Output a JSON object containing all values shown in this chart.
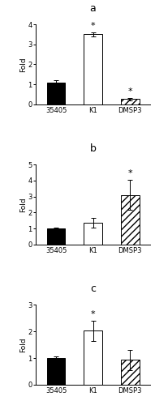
{
  "panels": [
    {
      "label": "a",
      "categories": [
        "35405",
        "K1",
        "DMSP3"
      ],
      "values": [
        1.07,
        3.5,
        0.27
      ],
      "errors": [
        0.12,
        0.1,
        0.06
      ],
      "ylim": [
        0,
        4
      ],
      "yticks": [
        0,
        1,
        2,
        3,
        4
      ],
      "bar_styles": [
        "solid_black",
        "solid_white",
        "hatch_white"
      ],
      "significant": [
        false,
        true,
        true
      ],
      "ylabel": "Fold"
    },
    {
      "label": "b",
      "categories": [
        "35405",
        "K1",
        "DMSP3"
      ],
      "values": [
        1.0,
        1.38,
        3.1
      ],
      "errors": [
        0.05,
        0.3,
        0.95
      ],
      "ylim": [
        0,
        5
      ],
      "yticks": [
        0,
        1,
        2,
        3,
        4,
        5
      ],
      "bar_styles": [
        "solid_black",
        "solid_white",
        "hatch_white"
      ],
      "significant": [
        false,
        false,
        true
      ],
      "ylabel": "Fold"
    },
    {
      "label": "c",
      "categories": [
        "35405",
        "K1",
        "DMSP3"
      ],
      "values": [
        1.0,
        2.02,
        0.93
      ],
      "errors": [
        0.07,
        0.38,
        0.38
      ],
      "ylim": [
        0,
        3
      ],
      "yticks": [
        0,
        1,
        2,
        3
      ],
      "bar_styles": [
        "solid_black",
        "solid_white",
        "hatch_white"
      ],
      "significant": [
        false,
        true,
        false
      ],
      "ylabel": "Fold"
    }
  ],
  "bar_width": 0.5,
  "background_color": "#ffffff",
  "text_color": "#000000",
  "fontsize_label": 6.5,
  "fontsize_tick": 6,
  "fontsize_panel_label": 9,
  "fontsize_sig": 8,
  "capsize": 2,
  "elinewidth": 0.7,
  "hatch_pattern": "////",
  "edge_color": "#000000",
  "linewidth": 0.7
}
